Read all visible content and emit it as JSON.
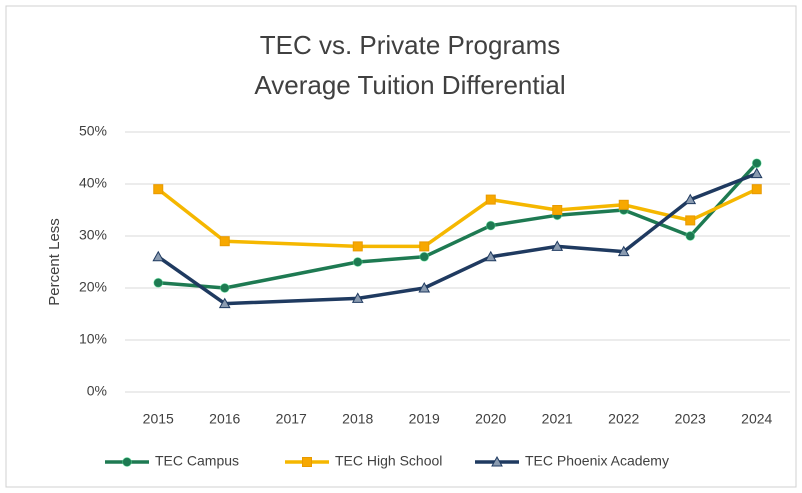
{
  "chart_data": {
    "type": "line",
    "title": [
      "TEC vs. Private Programs",
      "Average Tuition Differential"
    ],
    "ylabel": "Percent Less",
    "x": [
      2015,
      2016,
      2018,
      2019,
      2020,
      2021,
      2022,
      2023,
      2024
    ],
    "xlim": [
      2014.5,
      2024.5
    ],
    "xticks": [
      2015,
      2016,
      2017,
      2018,
      2019,
      2020,
      2021,
      2022,
      2023,
      2024
    ],
    "ylim": [
      0,
      50
    ],
    "yticks": [
      {
        "value": 0,
        "label": "0%"
      },
      {
        "value": 10,
        "label": "10%"
      },
      {
        "value": 20,
        "label": "20%"
      },
      {
        "value": 30,
        "label": "30%"
      },
      {
        "value": 40,
        "label": "40%"
      },
      {
        "value": 50,
        "label": "50%"
      }
    ],
    "grid": true,
    "legend": "bottom",
    "series": [
      {
        "name": "TEC Campus",
        "color": "#1e7a52",
        "marker": "circle",
        "values": [
          21,
          20,
          25,
          26,
          32,
          34,
          35,
          30,
          44
        ]
      },
      {
        "name": "TEC High School",
        "color": "#f5b700",
        "marker": "square",
        "values": [
          39,
          29,
          28,
          28,
          37,
          35,
          36,
          33,
          39
        ]
      },
      {
        "name": "TEC Phoenix Academy",
        "color": "#1f3a60",
        "marker": "triangle",
        "values": [
          26,
          17,
          18,
          20,
          26,
          28,
          27,
          37,
          42
        ]
      }
    ]
  }
}
